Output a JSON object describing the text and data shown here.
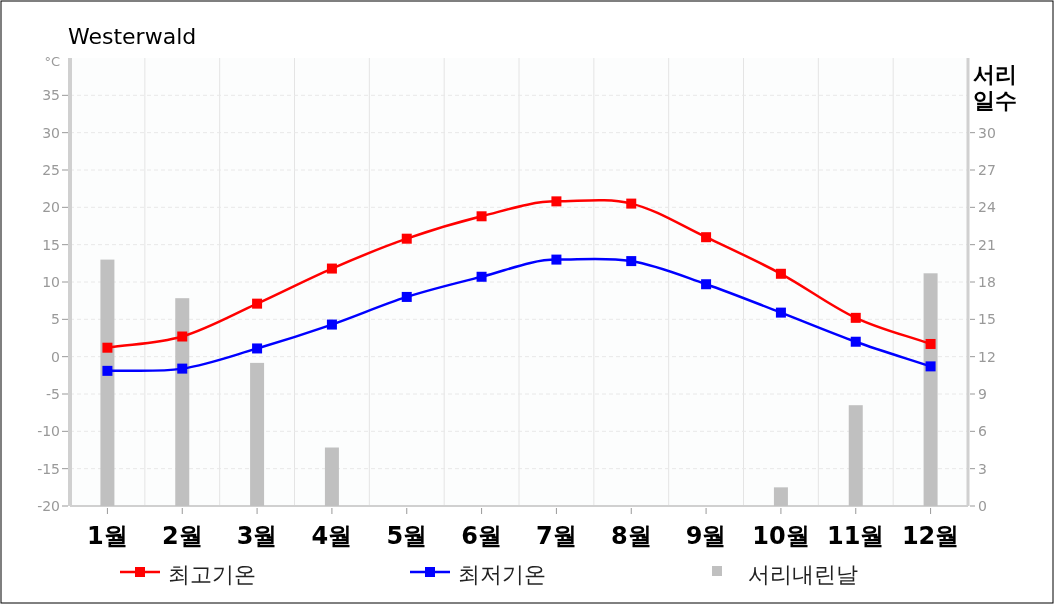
{
  "chart_data": {
    "type": "line",
    "title": "Westerwald",
    "ylabel": "°C",
    "y2label": "서리 일수",
    "categories": [
      "1월",
      "2월",
      "3월",
      "4월",
      "5월",
      "6월",
      "7월",
      "8월",
      "9월",
      "10월",
      "11월",
      "12월"
    ],
    "series": [
      {
        "name": "최고기온",
        "color": "#ff0000",
        "values": [
          1.2,
          2.7,
          7.1,
          11.8,
          15.8,
          18.8,
          20.8,
          20.5,
          16.0,
          11.1,
          5.2,
          1.7
        ]
      },
      {
        "name": "최저기온",
        "color": "#0000ff",
        "values": [
          -1.9,
          -1.6,
          1.1,
          4.3,
          8.0,
          10.7,
          13.0,
          12.8,
          9.7,
          5.9,
          2.0,
          -1.3
        ]
      },
      {
        "name": "서리내린날",
        "type": "bar",
        "axis": "y2",
        "color": "#c0c0c0",
        "values": [
          19.8,
          16.7,
          11.5,
          4.7,
          0,
          0,
          0,
          0,
          0,
          1.5,
          8.1,
          18.7
        ]
      }
    ],
    "ylim": [
      -20,
      40
    ],
    "yticks": [
      -20,
      -15,
      -10,
      -5,
      0,
      5,
      10,
      15,
      20,
      25,
      30,
      35
    ],
    "y2lim": [
      0,
      36
    ],
    "y2ticks": [
      0,
      3,
      6,
      9,
      12,
      15,
      18,
      21,
      24,
      27,
      30
    ],
    "marker": "square",
    "grid": true,
    "legend": "bottom"
  }
}
